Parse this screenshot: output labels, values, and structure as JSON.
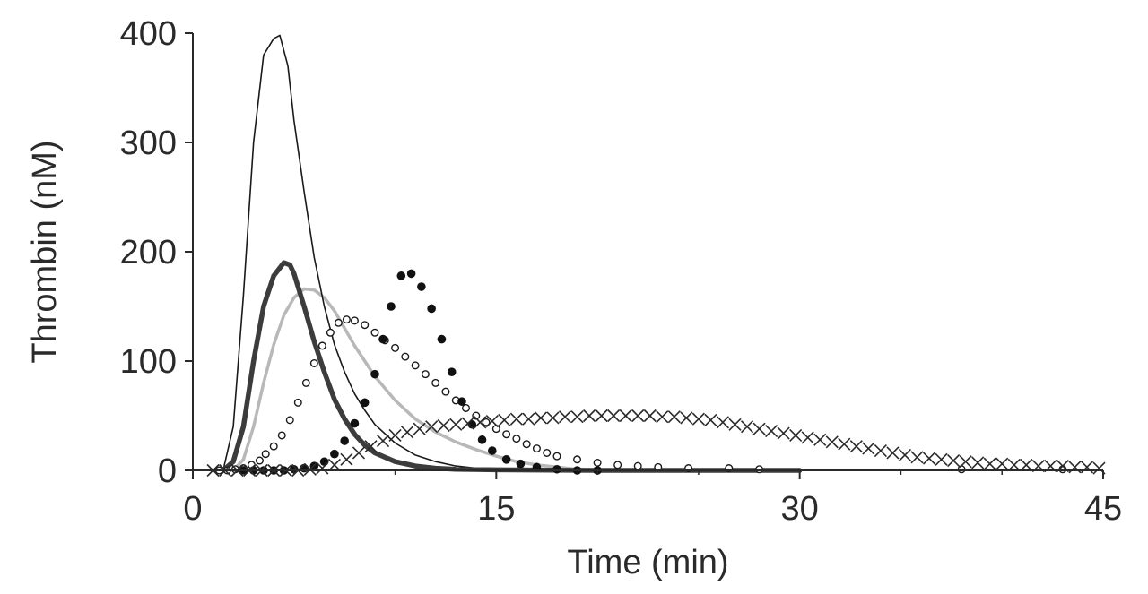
{
  "chart_data": {
    "type": "line",
    "title": "",
    "xlabel": "Time (min)",
    "ylabel": "Thrombin (nM)",
    "xlim": [
      0,
      45
    ],
    "ylim": [
      0,
      400
    ],
    "xticks": [
      "0",
      "15",
      "30",
      "45"
    ],
    "xtick_values": [
      0,
      15,
      30,
      45
    ],
    "yticks": [
      "0",
      "100",
      "200",
      "300",
      "400"
    ],
    "ytick_values": [
      0,
      100,
      200,
      300,
      400
    ],
    "grid": false,
    "legend": "none",
    "series": [
      {
        "name": "thin-black-line",
        "style": "thin-line",
        "color": "#1a1a1a",
        "x": [
          1.5,
          2.0,
          2.5,
          3.0,
          3.5,
          4.0,
          4.3,
          4.7,
          5.0,
          5.5,
          6.0,
          6.5,
          7.0,
          7.5,
          8.0,
          8.5,
          9.0,
          10.0,
          11.0,
          12.0,
          13.0,
          14.0,
          15.0,
          16.0,
          18.0
        ],
        "y": [
          0,
          40,
          160,
          300,
          380,
          395,
          398,
          370,
          320,
          255,
          195,
          150,
          115,
          90,
          70,
          55,
          42,
          25,
          14,
          8,
          4,
          2,
          1,
          0.5,
          0
        ]
      },
      {
        "name": "thick-dark-line",
        "style": "thick-line",
        "color": "#3c3c3c",
        "x": [
          1.5,
          2.0,
          2.5,
          3.0,
          3.5,
          4.0,
          4.5,
          4.8,
          5.0,
          5.5,
          6.0,
          6.5,
          7.0,
          7.5,
          8.0,
          8.5,
          9.0,
          10.0,
          11.0,
          12.0,
          13.0,
          15.0,
          20.0,
          30.0
        ],
        "y": [
          0,
          8,
          40,
          100,
          150,
          178,
          190,
          188,
          180,
          150,
          118,
          90,
          65,
          47,
          33,
          23,
          16,
          8,
          4,
          2,
          1,
          0.5,
          0,
          0
        ]
      },
      {
        "name": "gray-line",
        "style": "gray-line",
        "color": "#b8b8b8",
        "x": [
          2.0,
          2.5,
          3.0,
          3.5,
          4.0,
          4.5,
          5.0,
          5.5,
          6.0,
          6.5,
          7.0,
          7.5,
          8.0,
          8.5,
          9.0,
          10.0,
          11.0,
          12.0,
          13.0,
          14.0,
          15.0,
          16.0,
          17.0,
          18.0,
          19.0,
          20.0
        ],
        "y": [
          0,
          10,
          40,
          80,
          115,
          142,
          158,
          166,
          165,
          158,
          146,
          130,
          114,
          100,
          86,
          64,
          47,
          35,
          26,
          19,
          13,
          8,
          5,
          3,
          1,
          0
        ]
      },
      {
        "name": "open-circles",
        "style": "open-circles",
        "color": "#1a1a1a",
        "x": [
          1.3,
          1.7,
          2.1,
          2.5,
          2.9,
          3.3,
          3.6,
          4.0,
          4.4,
          4.8,
          5.2,
          5.6,
          6.0,
          6.4,
          6.8,
          7.2,
          7.6,
          8.0,
          8.5,
          9.0,
          9.5,
          10.0,
          10.5,
          11.0,
          11.5,
          12.0,
          12.5,
          13.0,
          13.5,
          14.0,
          14.5,
          15.0,
          15.5,
          16.0,
          16.5,
          17.0,
          17.5,
          18.0,
          19.0,
          20.0,
          21.0,
          22.0,
          23.0,
          24.5,
          26.5,
          28.0,
          38.0,
          43.0
        ],
        "y": [
          0,
          0,
          1,
          2,
          5,
          9,
          15,
          22,
          32,
          46,
          62,
          80,
          98,
          114,
          126,
          135,
          138,
          137,
          133,
          126,
          119,
          112,
          104,
          96,
          88,
          80,
          72,
          64,
          57,
          50,
          44,
          38,
          33,
          29,
          24,
          20,
          16,
          13,
          10,
          7,
          5,
          4,
          3,
          2,
          2,
          1,
          1,
          1
        ]
      },
      {
        "name": "filled-circles",
        "style": "filled-circles",
        "color": "#111111",
        "x": [
          2.5,
          3.0,
          3.5,
          4.0,
          4.5,
          5.0,
          5.5,
          6.0,
          6.5,
          7.0,
          7.5,
          8.0,
          8.5,
          9.0,
          9.4,
          9.8,
          10.3,
          10.8,
          11.3,
          11.8,
          12.3,
          12.8,
          13.3,
          13.8,
          14.3,
          14.8,
          15.5,
          16.2,
          17.0,
          18.0,
          19.0,
          20.0
        ],
        "y": [
          0,
          0,
          0,
          0,
          0,
          1,
          2,
          4,
          8,
          15,
          27,
          43,
          62,
          88,
          120,
          150,
          178,
          180,
          168,
          148,
          120,
          90,
          63,
          42,
          28,
          18,
          10,
          6,
          3,
          1,
          0,
          0
        ]
      },
      {
        "name": "crosses",
        "style": "crosses",
        "color": "#2a2a2a",
        "x": [
          1.0,
          1.6,
          2.2,
          2.8,
          3.4,
          4.0,
          4.6,
          5.2,
          5.8,
          6.4,
          7.0,
          7.6,
          8.2,
          8.8,
          9.4,
          10.0,
          10.6,
          11.2,
          11.8,
          12.4,
          13.0,
          13.6,
          14.2,
          14.8,
          15.4,
          16.0,
          16.6,
          17.2,
          17.8,
          18.4,
          19.0,
          19.6,
          20.2,
          20.8,
          21.4,
          22.0,
          22.6,
          23.2,
          23.8,
          24.4,
          25.0,
          25.6,
          26.2,
          26.8,
          27.4,
          28.0,
          28.6,
          29.2,
          29.8,
          30.4,
          31.0,
          31.6,
          32.2,
          32.8,
          33.4,
          34.0,
          34.6,
          35.2,
          35.8,
          36.4,
          37.0,
          37.6,
          38.2,
          38.8,
          39.4,
          40.0,
          40.6,
          41.2,
          41.8,
          42.4,
          43.0,
          43.6,
          44.2,
          44.8
        ],
        "y": [
          0,
          0,
          0,
          0,
          0,
          0,
          0,
          0,
          1,
          2,
          5,
          10,
          16,
          22,
          27,
          32,
          35,
          38,
          40,
          41,
          42,
          43,
          44,
          45,
          46,
          47,
          47,
          48,
          48,
          49,
          49,
          50,
          50,
          50,
          50,
          50,
          50,
          49,
          49,
          48,
          47,
          46,
          44,
          42,
          40,
          38,
          36,
          34,
          32,
          30,
          28,
          26,
          24,
          22,
          20,
          18,
          16,
          14,
          12,
          11,
          10,
          9,
          8,
          7,
          6,
          6,
          5,
          5,
          4,
          4,
          4,
          3,
          3,
          2
        ]
      }
    ]
  }
}
